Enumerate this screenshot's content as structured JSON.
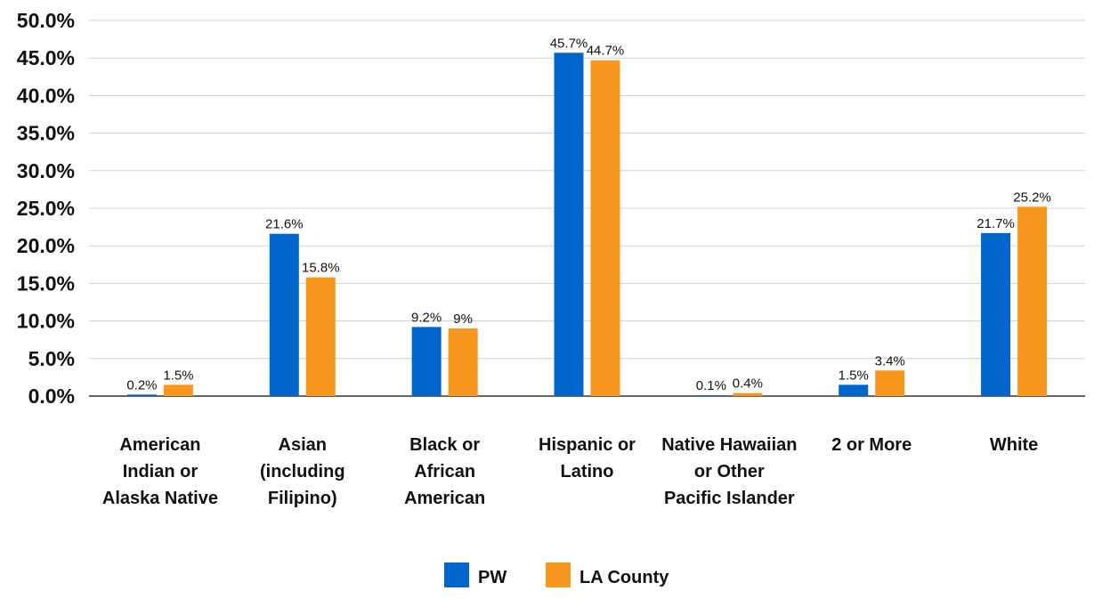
{
  "chart_data": {
    "type": "bar",
    "categories": [
      [
        "American",
        "Indian or",
        "Alaska Native"
      ],
      [
        "Asian",
        "(including",
        "Filipino)"
      ],
      [
        "Black or",
        "African",
        "American"
      ],
      [
        "Hispanic or",
        "Latino"
      ],
      [
        "Native Hawaiian",
        "or Other",
        "Pacific Islander"
      ],
      [
        "2 or More"
      ],
      [
        "White"
      ]
    ],
    "series": [
      {
        "name": "PW",
        "color": "#0066cc",
        "values": [
          0.2,
          21.6,
          9.2,
          45.7,
          0.1,
          1.5,
          21.7
        ],
        "labels": [
          "0.2%",
          "21.6%",
          "9.2%",
          "45.7%",
          "0.1%",
          "1.5%",
          "21.7%"
        ]
      },
      {
        "name": "LA County",
        "color": "#f7971d",
        "values": [
          1.5,
          15.8,
          9,
          44.7,
          0.4,
          3.4,
          25.2
        ],
        "labels": [
          "1.5%",
          "15.8%",
          "9%",
          "44.7%",
          "0.4%",
          "3.4%",
          "25.2%"
        ]
      }
    ],
    "y_ticks": [
      "0.0%",
      "5.0%",
      "10.0%",
      "15.0%",
      "20.0%",
      "25.0%",
      "30.0%",
      "35.0%",
      "40.0%",
      "45.0%",
      "50.0%"
    ],
    "ylim": [
      0,
      50
    ],
    "grid": true,
    "legend_position": "bottom-center"
  }
}
